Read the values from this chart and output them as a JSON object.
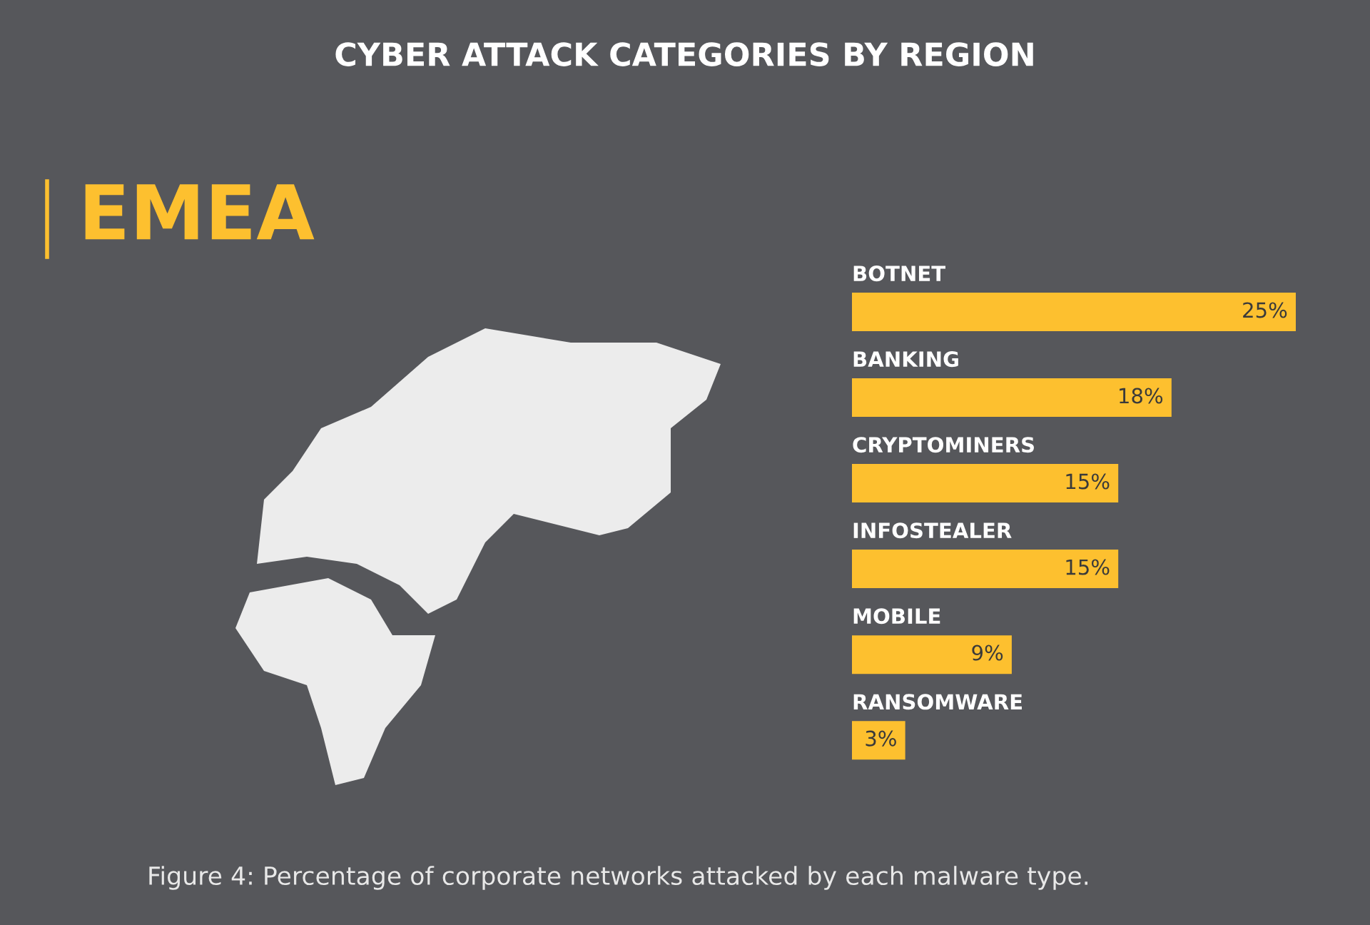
{
  "chart_data": {
    "type": "bar",
    "orientation": "horizontal",
    "title": "CYBER ATTACK CATEGORIES BY REGION",
    "subtitle": "EMEA",
    "categories": [
      "BOTNET",
      "BANKING",
      "CRYPTOMINERS",
      "INFOSTEALER",
      "MOBILE",
      "RANSOMWARE"
    ],
    "values": [
      25,
      18,
      15,
      15,
      9,
      3
    ],
    "value_labels": [
      "25%",
      "18%",
      "15%",
      "15%",
      "9%",
      "3%"
    ],
    "color": "#fdc02f",
    "annotations": [
      "Figure 4: Percentage of corporate networks attacked by each malware type."
    ]
  }
}
